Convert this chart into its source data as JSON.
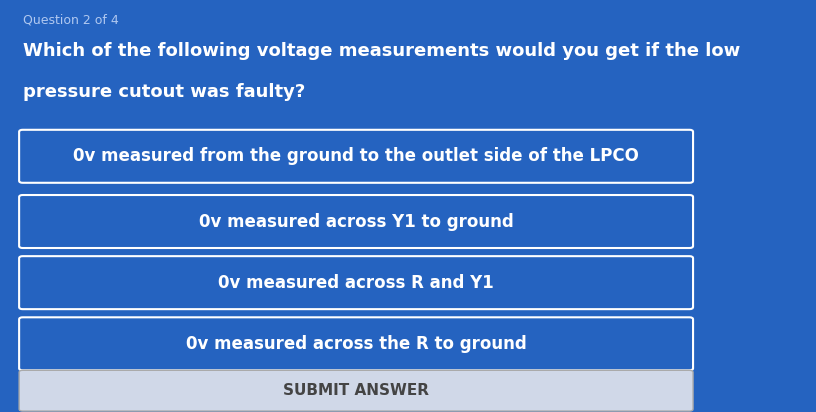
{
  "background_color": "#2563c0",
  "question_number": "Question 2 of 4",
  "question_text_line1": "Which of the following voltage measurements would you get if the low",
  "question_text_line2": "pressure cutout was faulty?",
  "options": [
    "0v measured from the ground to the outlet side of the LPCO",
    "0v measured across Y1 to ground",
    "0v measured across R and Y1",
    "0v measured across the R to ground"
  ],
  "submit_text": "SUBMIT ANSWER",
  "option_bg_color": "#2563c0",
  "option_border_color": "#ffffff",
  "option_text_color": "#ffffff",
  "question_text_color": "#ffffff",
  "question_number_color": "#b0c8f0",
  "submit_bg_color": "#d0d8e8",
  "submit_text_color": "#444444",
  "title_fontsize": 13,
  "option_fontsize": 12,
  "submit_fontsize": 11
}
